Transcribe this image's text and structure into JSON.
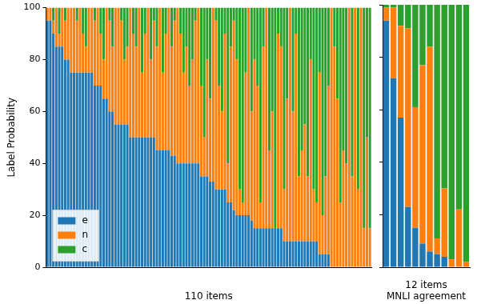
{
  "chart_data": [
    {
      "type": "bar",
      "stacked": true,
      "y_label": "Label Probability",
      "x_label": "110 items",
      "ylim": [
        0,
        100
      ],
      "yticks": [
        0,
        20,
        40,
        60,
        80,
        100
      ],
      "tick_labels": "y",
      "legend": "lower left",
      "categories": [
        null,
        null,
        null,
        null,
        null,
        null,
        null,
        null,
        null,
        null,
        null,
        null,
        null,
        null,
        null,
        null,
        null,
        null,
        null,
        null,
        null,
        null,
        null,
        null,
        null,
        null,
        null,
        null,
        null,
        null,
        null,
        null,
        null,
        null,
        null,
        null,
        null,
        null,
        null,
        null,
        null,
        null,
        null,
        null,
        null,
        null,
        null,
        null,
        null,
        null,
        null,
        null,
        null,
        null,
        null,
        null,
        null,
        null,
        null,
        null,
        null,
        null,
        null,
        null,
        null,
        null,
        null,
        null,
        null,
        null,
        null,
        null,
        null,
        null,
        null,
        null,
        null,
        null,
        null,
        null,
        null,
        null,
        null,
        null,
        null,
        null,
        null,
        null,
        null,
        null,
        null,
        null,
        null,
        null,
        null,
        null,
        null,
        null,
        null,
        null,
        null,
        null,
        null,
        null,
        null,
        null,
        null,
        null,
        null,
        null
      ],
      "series": [
        {
          "name": "e",
          "color": "#1f77b4",
          "values": [
            95,
            95,
            90,
            85,
            85,
            85,
            80,
            80,
            75,
            75,
            75,
            75,
            75,
            75,
            75,
            75,
            70,
            70,
            70,
            65,
            65,
            60,
            60,
            55,
            55,
            55,
            55,
            55,
            50,
            50,
            50,
            50,
            50,
            50,
            50,
            50,
            50,
            45,
            45,
            45,
            45,
            45,
            43,
            43,
            40,
            40,
            40,
            40,
            40,
            40,
            40,
            40,
            35,
            35,
            35,
            33,
            33,
            30,
            30,
            30,
            30,
            25,
            25,
            22,
            20,
            20,
            20,
            20,
            20,
            18,
            15,
            15,
            15,
            15,
            15,
            15,
            15,
            15,
            15,
            15,
            10,
            10,
            10,
            10,
            10,
            10,
            10,
            10,
            10,
            10,
            10,
            10,
            5,
            5,
            5,
            5,
            0,
            0,
            0,
            0,
            0,
            0,
            0,
            0,
            0,
            0,
            0,
            0,
            0,
            0
          ]
        },
        {
          "name": "n",
          "color": "#ff7f0e",
          "values": [
            5,
            5,
            5,
            15,
            5,
            15,
            15,
            20,
            25,
            25,
            20,
            25,
            15,
            10,
            25,
            25,
            25,
            30,
            20,
            15,
            35,
            35,
            25,
            45,
            45,
            40,
            25,
            30,
            50,
            40,
            35,
            50,
            25,
            40,
            50,
            30,
            45,
            40,
            55,
            30,
            45,
            55,
            42,
            52,
            60,
            50,
            35,
            45,
            30,
            40,
            55,
            60,
            35,
            15,
            45,
            32,
            67,
            65,
            40,
            30,
            60,
            15,
            60,
            73,
            60,
            10,
            5,
            55,
            80,
            42,
            65,
            55,
            10,
            70,
            85,
            30,
            45,
            0,
            75,
            70,
            20,
            55,
            90,
            50,
            80,
            25,
            35,
            45,
            25,
            70,
            20,
            15,
            70,
            15,
            30,
            65,
            100,
            85,
            65,
            25,
            45,
            40,
            100,
            35,
            100,
            30,
            100,
            15,
            50,
            15
          ]
        },
        {
          "name": "c",
          "color": "#2ca02c",
          "values": [
            0,
            0,
            5,
            0,
            10,
            0,
            5,
            0,
            0,
            0,
            5,
            0,
            10,
            15,
            0,
            0,
            5,
            0,
            10,
            20,
            0,
            5,
            15,
            0,
            0,
            5,
            20,
            15,
            0,
            10,
            15,
            0,
            25,
            10,
            0,
            20,
            5,
            15,
            0,
            25,
            10,
            0,
            15,
            5,
            0,
            10,
            25,
            15,
            30,
            20,
            5,
            0,
            30,
            50,
            20,
            35,
            0,
            5,
            30,
            40,
            10,
            60,
            15,
            5,
            20,
            70,
            75,
            25,
            0,
            40,
            20,
            30,
            75,
            15,
            0,
            55,
            40,
            85,
            10,
            15,
            70,
            35,
            0,
            40,
            10,
            65,
            55,
            45,
            65,
            20,
            70,
            75,
            25,
            80,
            65,
            30,
            0,
            15,
            35,
            75,
            55,
            60,
            0,
            65,
            0,
            70,
            0,
            85,
            50,
            85
          ]
        }
      ]
    },
    {
      "type": "bar",
      "stacked": true,
      "x_label": "12 items\nMNLI agreement",
      "ylim": [
        0,
        100
      ],
      "yticks": [
        0,
        20,
        40,
        60,
        80,
        100
      ],
      "tick_labels": false,
      "categories": [
        null,
        null,
        null,
        null,
        null,
        null,
        null,
        null,
        null,
        null,
        null,
        null
      ],
      "series": [
        {
          "name": "e",
          "color": "#1f77b4",
          "values": [
            94,
            72,
            57,
            23,
            15,
            9,
            6,
            5,
            4,
            0,
            0,
            0
          ]
        },
        {
          "name": "n",
          "color": "#ff7f0e",
          "values": [
            5,
            27,
            35,
            68,
            46,
            68,
            78,
            6,
            26,
            3,
            22,
            2
          ]
        },
        {
          "name": "c",
          "color": "#2ca02c",
          "values": [
            1,
            1,
            8,
            9,
            39,
            23,
            16,
            89,
            70,
            97,
            78,
            98
          ]
        }
      ]
    }
  ]
}
